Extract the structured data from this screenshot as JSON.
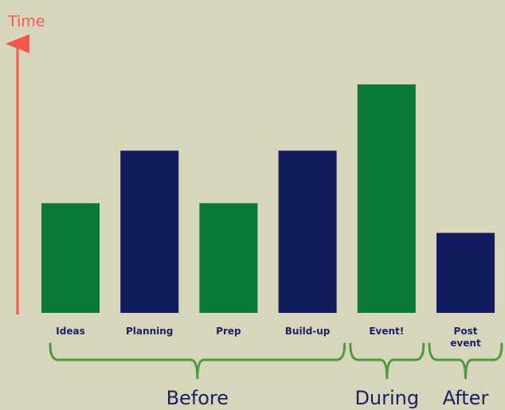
{
  "colors": {
    "background": "#d8d5bd",
    "green": "#0b7a37",
    "navy": "#121c5e",
    "axis": "#f15a4a",
    "bracket": "#4f9a3c",
    "label": "#1b2260"
  },
  "chart_data": {
    "type": "bar",
    "ylabel": "Time",
    "xlabel": "",
    "y_axis_ticks": false,
    "grid": false,
    "ylim": [
      0,
      100
    ],
    "categories": [
      [
        "Ideas"
      ],
      [
        "Planning"
      ],
      [
        "Prep"
      ],
      [
        "Build-up"
      ],
      [
        "Event!"
      ],
      [
        "Post",
        "event"
      ]
    ],
    "values": [
      48,
      71,
      48,
      71,
      100,
      35
    ],
    "bar_colors": [
      "green",
      "navy",
      "green",
      "navy",
      "green",
      "navy"
    ],
    "phases": [
      {
        "label": "Before",
        "from": 0,
        "to": 3
      },
      {
        "label": "During",
        "from": 4,
        "to": 4
      },
      {
        "label": "After",
        "from": 5,
        "to": 5
      }
    ]
  }
}
